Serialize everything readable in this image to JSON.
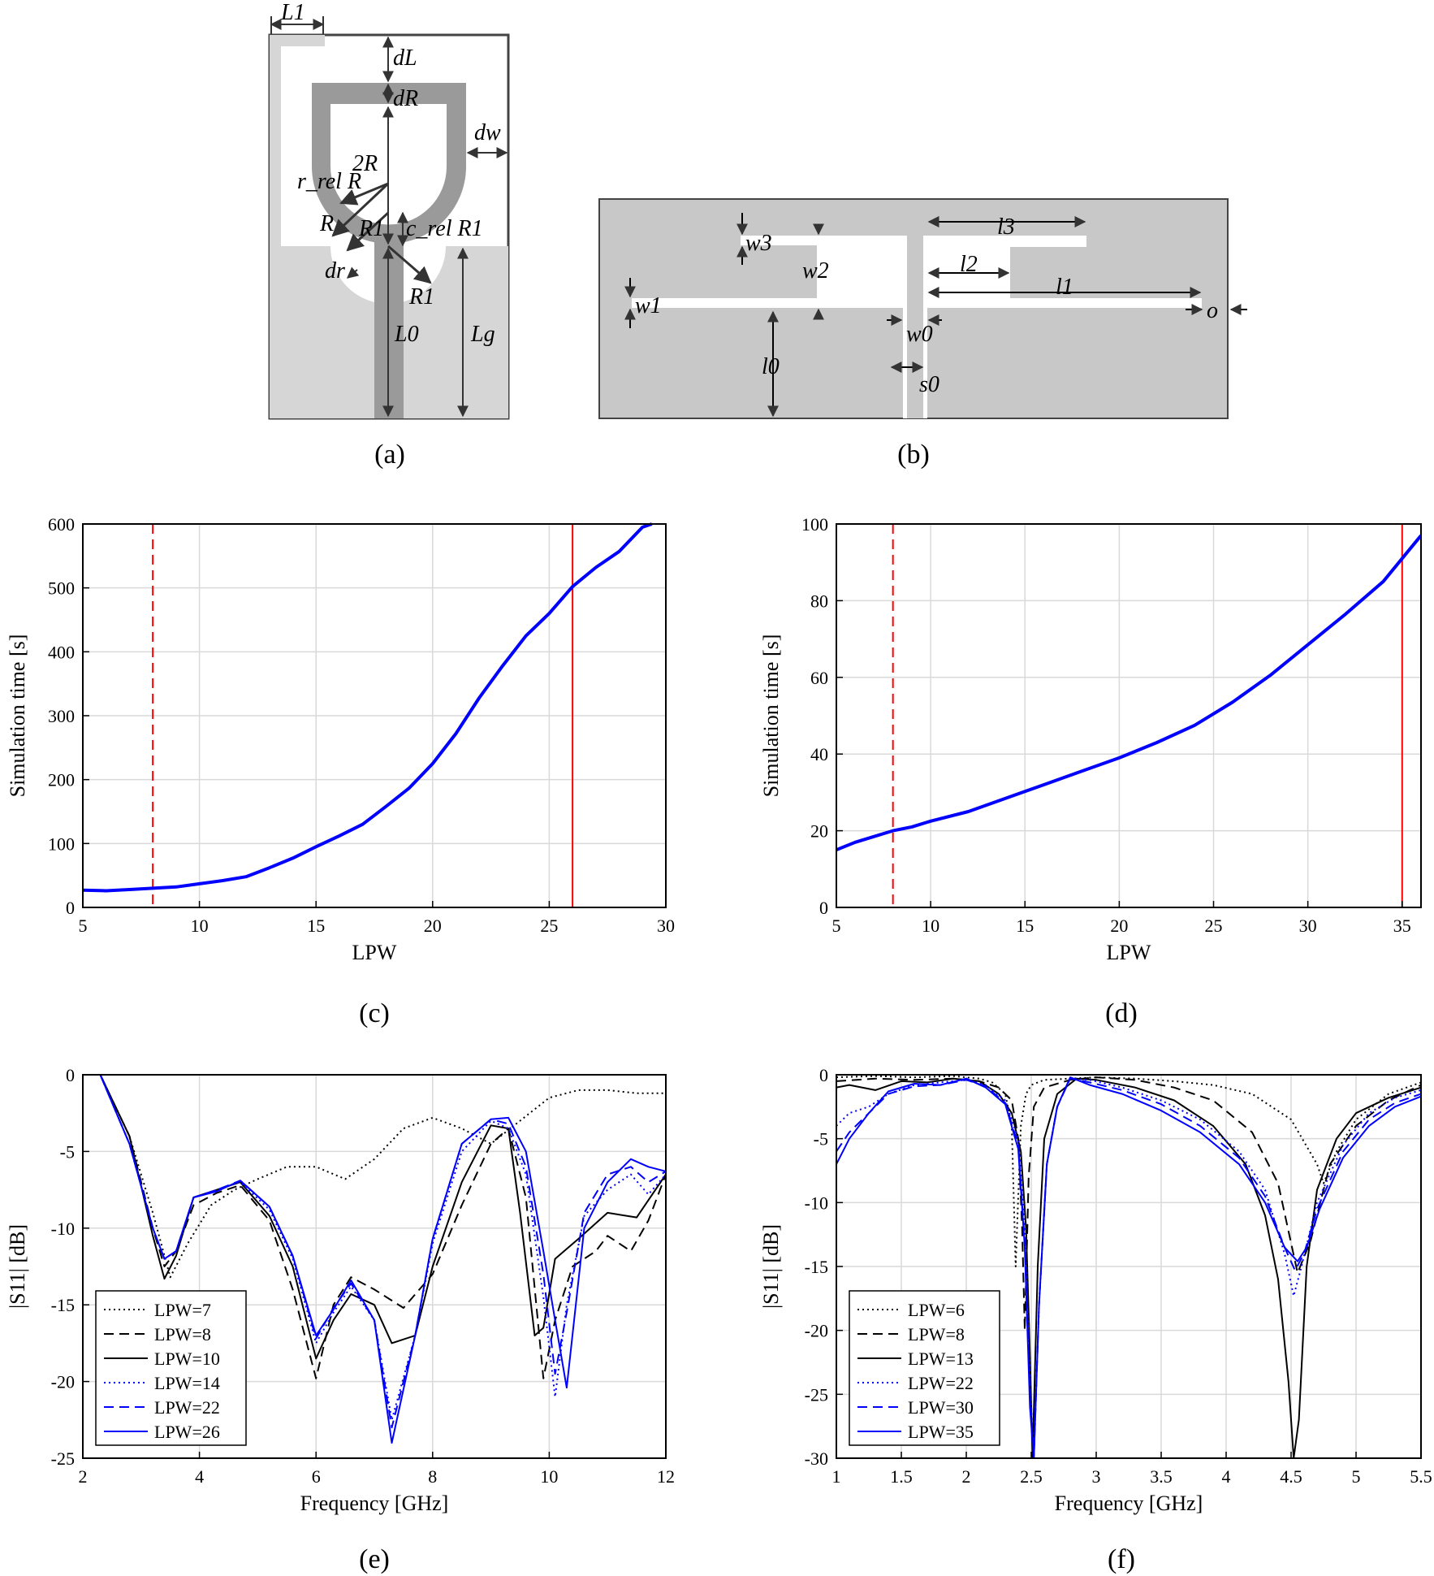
{
  "panels": {
    "a": {
      "label": "(a)"
    },
    "b": {
      "label": "(b)"
    },
    "c": {
      "label": "(c)"
    },
    "d": {
      "label": "(d)"
    },
    "e": {
      "label": "(e)"
    },
    "f": {
      "label": "(f)"
    }
  },
  "diagram_a": {
    "labels": [
      "L1",
      "dL",
      "dR",
      "dw",
      "2R",
      "r_rel R",
      "R",
      "R1",
      "c_rel R1",
      "dr",
      "R1",
      "L0",
      "Lg"
    ]
  },
  "diagram_b": {
    "labels": [
      "w3",
      "w2",
      "l3",
      "l2",
      "w1",
      "l1",
      "o",
      "w0",
      "s0",
      "l0"
    ]
  },
  "colors": {
    "blue": "#0000ff",
    "red": "#ff0000",
    "black": "#000000",
    "grid": "#d9d9d9",
    "substrate": "#c8c8c8",
    "patch": "#9a9a9a",
    "ground_light": "#d6d6d6"
  },
  "chart_data": [
    {
      "id": "c",
      "type": "line",
      "xlabel": "LPW",
      "ylabel": "Simulation time [s]",
      "xlim": [
        5,
        30
      ],
      "ylim": [
        0,
        600
      ],
      "xticks": [
        5,
        10,
        15,
        20,
        25,
        30
      ],
      "yticks": [
        0,
        100,
        200,
        300,
        400,
        500,
        600
      ],
      "grid": true,
      "vlines": [
        {
          "x": 8,
          "color": "#ff0000",
          "style": "dashed"
        },
        {
          "x": 26,
          "color": "#ff0000",
          "style": "solid"
        }
      ],
      "series": [
        {
          "color": "#0000ff",
          "style": "solid",
          "width": 4,
          "x": [
            5,
            6,
            7,
            8,
            9,
            10,
            11,
            12,
            13,
            14,
            15,
            16,
            17,
            18,
            19,
            20,
            21,
            22,
            23,
            24,
            25,
            26,
            27,
            28,
            29,
            29.4
          ],
          "y": [
            27,
            26,
            28,
            30,
            32,
            37,
            42,
            48,
            62,
            77,
            95,
            112,
            130,
            158,
            187,
            225,
            272,
            328,
            378,
            425,
            460,
            502,
            532,
            557,
            595,
            600
          ]
        }
      ]
    },
    {
      "id": "d",
      "type": "line",
      "xlabel": "LPW",
      "ylabel": "Simulation time [s]",
      "xlim": [
        5,
        36
      ],
      "ylim": [
        0,
        100
      ],
      "xticks": [
        5,
        10,
        15,
        20,
        25,
        30,
        35
      ],
      "yticks": [
        0,
        20,
        40,
        60,
        80,
        100
      ],
      "grid": true,
      "vlines": [
        {
          "x": 8,
          "color": "#ff0000",
          "style": "dashed"
        },
        {
          "x": 35,
          "color": "#ff0000",
          "style": "solid"
        }
      ],
      "series": [
        {
          "color": "#0000ff",
          "style": "solid",
          "width": 4,
          "x": [
            5,
            6,
            7,
            8,
            9,
            10,
            12,
            14,
            16,
            18,
            20,
            22,
            24,
            26,
            28,
            30,
            32,
            34,
            36
          ],
          "y": [
            15,
            17,
            18.5,
            20,
            21,
            22.5,
            25,
            28.5,
            32,
            35.5,
            39,
            43,
            47.5,
            53.5,
            60.5,
            68.5,
            76.5,
            85,
            97
          ]
        }
      ]
    },
    {
      "id": "e",
      "type": "line",
      "xlabel": "Frequency [GHz]",
      "ylabel": "|S11| [dB]",
      "xlim": [
        2,
        12
      ],
      "ylim": [
        -25,
        0
      ],
      "xticks": [
        2,
        4,
        6,
        8,
        10,
        12
      ],
      "yticks": [
        0,
        -5,
        -10,
        -15,
        -20,
        -25
      ],
      "grid": true,
      "legend": "lower-left",
      "series": [
        {
          "name": "LPW=7",
          "color": "#000000",
          "style": "dotted",
          "x": [
            2.3,
            2.8,
            3.2,
            3.5,
            3.8,
            4.2,
            4.6,
            5.0,
            5.5,
            6.0,
            6.5,
            7.0,
            7.5,
            8.0,
            8.5,
            9.0,
            9.5,
            10.0,
            10.5,
            11.0,
            11.5,
            12.0
          ],
          "y": [
            0,
            -4,
            -9,
            -13.2,
            -11,
            -8.5,
            -7.5,
            -6.8,
            -6.0,
            -6.0,
            -6.8,
            -5.5,
            -3.5,
            -2.8,
            -3.5,
            -4.5,
            -3.0,
            -1.5,
            -1.0,
            -1.0,
            -1.2,
            -1.2
          ]
        },
        {
          "name": "LPW=8",
          "color": "#000000",
          "style": "dashed",
          "x": [
            2.3,
            2.8,
            3.2,
            3.4,
            3.6,
            3.9,
            4.3,
            4.7,
            5.2,
            5.6,
            6.0,
            6.3,
            6.6,
            7.0,
            7.5,
            8.0,
            8.5,
            9.0,
            9.3,
            9.6,
            9.9,
            10.1,
            10.4,
            10.8,
            11.0,
            11.4,
            11.7,
            12.0
          ],
          "y": [
            0,
            -4,
            -10,
            -12.5,
            -11.5,
            -8.5,
            -7.7,
            -7.2,
            -9.5,
            -14,
            -19.8,
            -15,
            -13.2,
            -14,
            -15.2,
            -13,
            -8.5,
            -4.5,
            -3.5,
            -8,
            -19.8,
            -16,
            -12.5,
            -11.5,
            -10.5,
            -11.5,
            -9.5,
            -6.5
          ]
        },
        {
          "name": "LPW=10",
          "color": "#000000",
          "style": "solid",
          "x": [
            2.3,
            2.8,
            3.2,
            3.4,
            3.6,
            3.9,
            4.3,
            4.7,
            5.2,
            5.6,
            6.0,
            6.3,
            6.6,
            7.0,
            7.3,
            7.7,
            8.0,
            8.5,
            9.0,
            9.3,
            9.5,
            9.75,
            9.9,
            10.1,
            10.5,
            11.0,
            11.5,
            12.0
          ],
          "y": [
            0,
            -4,
            -10.5,
            -13.3,
            -11.8,
            -8,
            -7.5,
            -7.0,
            -9.2,
            -12.5,
            -18.5,
            -16,
            -14.3,
            -15,
            -17.5,
            -17,
            -12.5,
            -7,
            -3.3,
            -3.5,
            -9,
            -17,
            -16.5,
            -12,
            -10.7,
            -9,
            -9.3,
            -6.5
          ]
        },
        {
          "name": "LPW=14",
          "color": "#0000ff",
          "style": "dotted",
          "x": [
            2.3,
            2.8,
            3.2,
            3.4,
            3.6,
            3.9,
            4.3,
            4.7,
            5.2,
            5.6,
            6.0,
            6.3,
            6.6,
            7.0,
            7.3,
            7.7,
            8.0,
            8.5,
            9.0,
            9.3,
            9.6,
            9.9,
            10.1,
            10.3,
            10.6,
            11.0,
            11.4,
            11.7,
            12.0
          ],
          "y": [
            0,
            -4.5,
            -10,
            -12,
            -11.5,
            -8,
            -7.5,
            -7.0,
            -8.8,
            -12,
            -17.5,
            -15.5,
            -13.8,
            -16,
            -22.5,
            -17,
            -11,
            -5,
            -3,
            -3.5,
            -6.5,
            -14.5,
            -21,
            -15,
            -9.2,
            -7.5,
            -6.5,
            -7.8,
            -6.5
          ]
        },
        {
          "name": "LPW=22",
          "color": "#0000ff",
          "style": "dashed",
          "x": [
            2.3,
            2.8,
            3.2,
            3.4,
            3.6,
            3.9,
            4.3,
            4.7,
            5.2,
            5.6,
            6.0,
            6.3,
            6.6,
            7.0,
            7.3,
            7.7,
            8.0,
            8.5,
            9.0,
            9.3,
            9.6,
            9.9,
            10.1,
            10.3,
            10.6,
            11.0,
            11.4,
            11.7,
            12.0
          ],
          "y": [
            0,
            -4.5,
            -10,
            -12,
            -11.5,
            -8,
            -7.5,
            -6.9,
            -8.6,
            -11.8,
            -17.2,
            -15.2,
            -13.6,
            -16,
            -23,
            -17,
            -10.7,
            -4.5,
            -2.9,
            -3.2,
            -6,
            -13,
            -19.5,
            -15.5,
            -9,
            -6.5,
            -6,
            -7,
            -6.3
          ]
        },
        {
          "name": "LPW=26",
          "color": "#0000ff",
          "style": "solid",
          "x": [
            2.3,
            2.8,
            3.2,
            3.4,
            3.6,
            3.9,
            4.3,
            4.7,
            5.2,
            5.6,
            6.0,
            6.3,
            6.6,
            7.0,
            7.3,
            7.7,
            8.0,
            8.5,
            9.0,
            9.3,
            9.6,
            9.9,
            10.1,
            10.3,
            10.6,
            11.0,
            11.4,
            11.7,
            12.0
          ],
          "y": [
            0,
            -4.5,
            -10,
            -12,
            -11.5,
            -8,
            -7.6,
            -6.9,
            -8.6,
            -11.8,
            -17.0,
            -15.3,
            -13.4,
            -16,
            -24,
            -17,
            -10.7,
            -4.5,
            -2.9,
            -2.8,
            -5,
            -11.5,
            -16,
            -20.4,
            -10,
            -7,
            -5.5,
            -6,
            -6.3
          ]
        }
      ]
    },
    {
      "id": "f",
      "type": "line",
      "xlabel": "Frequency [GHz]",
      "ylabel": "|S11| [dB]",
      "xlim": [
        1,
        5.5
      ],
      "ylim": [
        -30,
        0
      ],
      "xticks": [
        1,
        1.5,
        2,
        2.5,
        3,
        3.5,
        4,
        4.5,
        5,
        5.5
      ],
      "yticks": [
        0,
        -5,
        -10,
        -15,
        -20,
        -25,
        -30
      ],
      "grid": true,
      "legend": "lower-left",
      "series": [
        {
          "name": "LPW=6",
          "color": "#000000",
          "style": "dotted",
          "x": [
            1.0,
            1.3,
            1.6,
            1.9,
            2.1,
            2.2,
            2.3,
            2.35,
            2.38,
            2.42,
            2.46,
            2.5,
            2.6,
            2.8,
            3.0,
            3.3,
            3.6,
            3.9,
            4.2,
            4.5,
            4.7,
            4.75,
            4.85,
            5.0,
            5.25,
            5.5
          ],
          "y": [
            -0.2,
            -0.1,
            -0.2,
            -0.1,
            -0.3,
            -0.6,
            -1.5,
            -4,
            -15,
            -4,
            -1.5,
            -0.8,
            -0.4,
            -0.3,
            -0.2,
            -0.3,
            -0.5,
            -0.8,
            -1.5,
            -3.5,
            -7.0,
            -8.5,
            -6,
            -3.5,
            -1.5,
            -0.6
          ]
        },
        {
          "name": "LPW=8",
          "color": "#000000",
          "style": "dashed",
          "x": [
            1.0,
            1.3,
            1.6,
            1.9,
            2.1,
            2.25,
            2.35,
            2.4,
            2.43,
            2.45,
            2.48,
            2.52,
            2.6,
            2.8,
            3.0,
            3.3,
            3.6,
            3.9,
            4.2,
            4.4,
            4.55,
            4.65,
            4.8,
            5.0,
            5.25,
            5.5
          ],
          "y": [
            -0.5,
            -0.3,
            -0.4,
            -0.3,
            -0.5,
            -1,
            -2,
            -5,
            -12,
            -20,
            -8,
            -2.5,
            -1,
            -0.4,
            -0.2,
            -0.4,
            -1,
            -2,
            -4.5,
            -8.5,
            -15.5,
            -13,
            -7,
            -4,
            -2,
            -0.8
          ]
        },
        {
          "name": "LPW=13",
          "color": "#000000",
          "style": "solid",
          "x": [
            1.0,
            1.1,
            1.3,
            1.5,
            1.7,
            1.9,
            2.1,
            2.25,
            2.35,
            2.42,
            2.46,
            2.49,
            2.51,
            2.55,
            2.6,
            2.7,
            2.85,
            3.0,
            3.3,
            3.6,
            3.9,
            4.15,
            4.3,
            4.4,
            4.48,
            4.52,
            4.56,
            4.62,
            4.7,
            4.85,
            5.0,
            5.25,
            5.5
          ],
          "y": [
            -1,
            -0.8,
            -1.2,
            -0.5,
            -0.6,
            -0.3,
            -0.5,
            -1.5,
            -3,
            -6,
            -12,
            -22,
            -30,
            -15,
            -5,
            -1.5,
            -0.3,
            -0.4,
            -1,
            -2,
            -4,
            -7,
            -11,
            -16,
            -24,
            -30,
            -27,
            -15,
            -9,
            -5,
            -3,
            -1.8,
            -1.0
          ]
        },
        {
          "name": "LPW=22",
          "color": "#0000ff",
          "style": "dotted",
          "x": [
            1.0,
            1.1,
            1.25,
            1.4,
            1.6,
            1.8,
            2.0,
            2.15,
            2.3,
            2.4,
            2.45,
            2.49,
            2.52,
            2.56,
            2.62,
            2.7,
            2.8,
            2.95,
            3.2,
            3.5,
            3.8,
            4.1,
            4.3,
            4.45,
            4.52,
            4.58,
            4.7,
            4.9,
            5.1,
            5.3,
            5.5
          ],
          "y": [
            -4,
            -3,
            -2.5,
            -1.5,
            -0.8,
            -0.6,
            -0.4,
            -0.8,
            -2,
            -5,
            -12,
            -24,
            -30,
            -18,
            -7,
            -2.5,
            -0.3,
            -0.4,
            -1,
            -2,
            -3.5,
            -6,
            -9,
            -14,
            -17.3,
            -15,
            -10,
            -5.5,
            -3,
            -1.8,
            -1.2
          ]
        },
        {
          "name": "LPW=30",
          "color": "#0000ff",
          "style": "dashed",
          "x": [
            1.0,
            1.1,
            1.25,
            1.4,
            1.6,
            1.8,
            2.0,
            2.15,
            2.3,
            2.4,
            2.45,
            2.49,
            2.52,
            2.56,
            2.62,
            2.7,
            2.8,
            2.95,
            3.2,
            3.5,
            3.8,
            4.1,
            4.3,
            4.45,
            4.53,
            4.6,
            4.7,
            4.9,
            5.1,
            5.3,
            5.5
          ],
          "y": [
            -6,
            -4.5,
            -3,
            -1.5,
            -0.9,
            -0.8,
            -0.4,
            -0.9,
            -2.2,
            -5.5,
            -13,
            -25,
            -30,
            -18,
            -7,
            -2.5,
            -0.3,
            -0.6,
            -1.2,
            -2.3,
            -4,
            -6.5,
            -9.5,
            -13.5,
            -15.3,
            -14,
            -10.5,
            -6,
            -3.5,
            -2.2,
            -1.5
          ]
        },
        {
          "name": "LPW=35",
          "color": "#0000ff",
          "style": "solid",
          "x": [
            1.0,
            1.1,
            1.25,
            1.4,
            1.6,
            1.8,
            2.0,
            2.15,
            2.3,
            2.4,
            2.45,
            2.49,
            2.52,
            2.56,
            2.62,
            2.7,
            2.8,
            2.95,
            3.2,
            3.5,
            3.8,
            4.1,
            4.3,
            4.45,
            4.55,
            4.62,
            4.72,
            4.9,
            5.1,
            5.3,
            5.5
          ],
          "y": [
            -7,
            -5,
            -3,
            -1.3,
            -0.7,
            -0.8,
            -0.3,
            -1,
            -2.3,
            -5.8,
            -13.5,
            -26,
            -30,
            -18,
            -7,
            -2.5,
            -0.2,
            -0.8,
            -1.5,
            -2.8,
            -4.5,
            -7,
            -10,
            -13.5,
            -14.6,
            -13.5,
            -10.5,
            -6.5,
            -4,
            -2.5,
            -1.7
          ]
        }
      ]
    }
  ]
}
